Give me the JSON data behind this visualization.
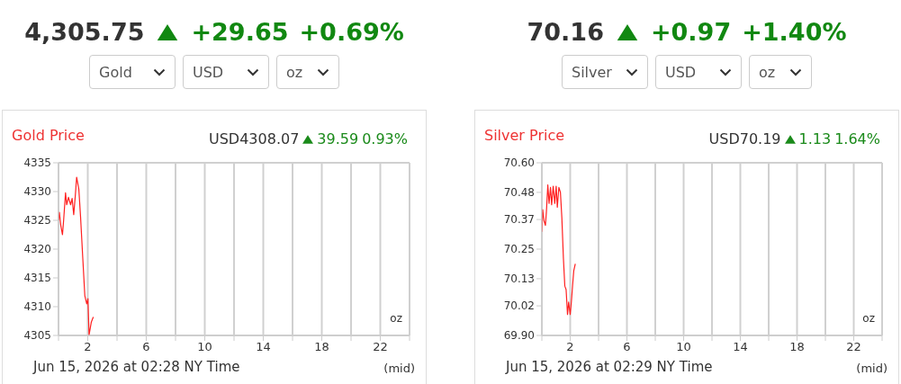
{
  "chart_data": [
    {
      "type": "line",
      "title": "Gold Price",
      "xlabel": "Jun 15, 2026 at 02:28 NY Time",
      "annotations": [
        "4,305.75",
        "+29.65",
        "+0.69%",
        "Gold",
        "USD",
        "oz",
        "USD4308.07",
        "39.59",
        "0.93%",
        "oz",
        "(mid)"
      ],
      "x": [
        0,
        0.06,
        0.15,
        0.27,
        0.35,
        0.48,
        0.56,
        0.68,
        0.83,
        0.93,
        1.04,
        1.14,
        1.24,
        1.39,
        1.51,
        1.66,
        1.8,
        1.93,
        2.01,
        2.09,
        2.24,
        2.38
      ],
      "series": [
        {
          "color": "#ff2020",
          "values": [
            4325,
            4326.4,
            4324.2,
            4322.5,
            4325,
            4329.8,
            4327.7,
            4329,
            4327.7,
            4328.8,
            4326,
            4329,
            4332.5,
            4330.4,
            4325.5,
            4318.4,
            4311.9,
            4310.5,
            4311.4,
            4305.1,
            4307.3,
            4308.2
          ]
        }
      ],
      "xlim": [
        0,
        24
      ],
      "xticks": [
        {
          "value": 0,
          "label": null
        },
        2,
        {
          "value": 4,
          "label": null
        },
        6,
        {
          "value": 8,
          "label": null
        },
        10,
        {
          "value": 12,
          "label": null
        },
        14,
        {
          "value": 16,
          "label": null
        },
        18,
        {
          "value": 20,
          "label": null
        },
        22,
        {
          "value": 24,
          "label": null
        }
      ],
      "ylim": [
        4305,
        4335
      ],
      "yticks": [
        4305,
        4310,
        4315,
        4320,
        4325,
        4330,
        4335
      ],
      "grid": true
    },
    {
      "type": "line",
      "title": "Silver Price",
      "xlabel": "Jun 15, 2026 at 02:29 NY Time",
      "annotations": [
        "70.16",
        "+0.97",
        "+1.40%",
        "Silver",
        "USD",
        "oz",
        "USD70.19",
        "1.13",
        "1.64%",
        "oz",
        "(mid)"
      ],
      "x": [
        0,
        0.06,
        0.15,
        0.25,
        0.32,
        0.42,
        0.51,
        0.61,
        0.69,
        0.8,
        0.91,
        1.01,
        1.09,
        1.2,
        1.31,
        1.41,
        1.52,
        1.62,
        1.71,
        1.81,
        1.89,
        2,
        2.08,
        2.17,
        2.25,
        2.36
      ],
      "series": [
        {
          "color": "#ff2020",
          "values": [
            70.32,
            70.41,
            70.365,
            70.346,
            70.4,
            70.51,
            70.435,
            70.5,
            70.43,
            70.505,
            70.435,
            70.505,
            70.42,
            70.5,
            70.48,
            70.378,
            70.213,
            70.1,
            70.086,
            69.985,
            70.035,
            69.985,
            70.035,
            70.105,
            70.162,
            70.19
          ]
        }
      ],
      "xlim": [
        0,
        24
      ],
      "xticks": [
        {
          "value": 0,
          "label": null
        },
        2,
        {
          "value": 4,
          "label": null
        },
        6,
        {
          "value": 8,
          "label": null
        },
        10,
        {
          "value": 12,
          "label": null
        },
        14,
        {
          "value": 16,
          "label": null
        },
        18,
        {
          "value": 20,
          "label": null
        },
        22,
        {
          "value": 24,
          "label": null
        }
      ],
      "ylim": [
        69.9,
        70.6
      ],
      "yticks": [
        {
          "value": 69.9,
          "label": "69.90"
        },
        70.02,
        70.13,
        70.25,
        70.37,
        70.48,
        {
          "value": 70.6,
          "label": "70.60"
        }
      ],
      "grid": true
    }
  ]
}
